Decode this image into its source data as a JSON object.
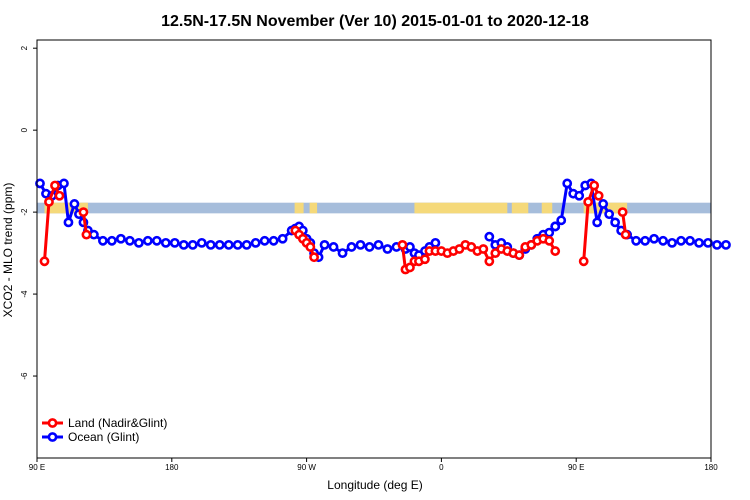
{
  "chart_data": {
    "type": "line",
    "title": "12.5N-17.5N November (Ver 10)   2015-01-01 to 2020-12-18",
    "xlabel": "Longitude (deg E)",
    "ylabel": "XCO2 - MLO trend (ppm)",
    "xlim": [
      90,
      450
    ],
    "ylim": [
      -8,
      2.2
    ],
    "x_ticks": [
      {
        "value": 90,
        "label": "90 E"
      },
      {
        "value": 180,
        "label": "180"
      },
      {
        "value": 270,
        "label": "90 W"
      },
      {
        "value": 360,
        "label": "0"
      },
      {
        "value": 450,
        "label": "90 E"
      },
      {
        "value": 540,
        "label": "180"
      }
    ],
    "y_ticks": [
      {
        "value": 2,
        "label": "2"
      },
      {
        "value": 0,
        "label": "0"
      },
      {
        "value": -2,
        "label": "-2"
      },
      {
        "value": -4,
        "label": "-4"
      },
      {
        "value": -6,
        "label": "-6"
      }
    ],
    "land_sea_strip": {
      "y_center": -1.9,
      "half_height": 0.13,
      "ocean_color": "#a6bddb",
      "land_color": "#f5d97a"
    },
    "legend": {
      "position": "bottom-left",
      "entries": [
        "Land (Nadir&Glint)",
        "Ocean (Glint)"
      ]
    },
    "series": [
      {
        "name": "Land (Nadir&Glint)",
        "color": "#ff0000",
        "segments": [
          {
            "x": [
              95,
              98,
              102,
              105
            ],
            "y": [
              -3.2,
              -1.75,
              -1.35,
              -1.6
            ]
          },
          {
            "x": [
              121,
              123
            ],
            "y": [
              -2.0,
              -2.55
            ]
          },
          {
            "x": [
              262.5,
              265,
              267.5,
              270,
              272.5,
              275
            ],
            "y": [
              -2.45,
              -2.55,
              -2.65,
              -2.75,
              -2.85,
              -3.1
            ]
          },
          {
            "x": [
              334,
              336,
              339,
              342,
              345,
              349,
              352,
              356,
              360,
              364,
              368,
              372,
              376,
              380,
              384,
              388,
              392,
              396,
              400,
              404,
              408,
              412,
              416,
              420,
              424,
              428,
              432,
              436
            ],
            "y": [
              -2.8,
              -3.4,
              -3.35,
              -3.2,
              -3.2,
              -3.15,
              -2.95,
              -2.95,
              -2.95,
              -3.0,
              -2.95,
              -2.9,
              -2.8,
              -2.85,
              -2.95,
              -2.9,
              -3.2,
              -3.0,
              -2.9,
              -2.95,
              -3.0,
              -3.05,
              -2.85,
              -2.8,
              -2.7,
              -2.65,
              -2.7,
              -2.95
            ]
          }
        ]
      },
      {
        "name": "Ocean (Glint)",
        "color": "#0000ff",
        "segments": [
          {
            "x": [
              92,
              96,
              100,
              104,
              108,
              111,
              115,
              118,
              121,
              124,
              128,
              134,
              140,
              146,
              152,
              158,
              164,
              170,
              176,
              182,
              188,
              194,
              200,
              206,
              212,
              218,
              224,
              230,
              236,
              242,
              248,
              254,
              260,
              262.5,
              265,
              267.5,
              270,
              272.5,
              275,
              278,
              282,
              288,
              294,
              300,
              306,
              312,
              318,
              324,
              330,
              336,
              339,
              342,
              345,
              349,
              352,
              356
            ],
            "y": [
              -1.3,
              -1.55,
              -1.6,
              -1.35,
              -1.3,
              -2.25,
              -1.8,
              -2.05,
              -2.25,
              -2.45,
              -2.55,
              -2.7,
              -2.7,
              -2.65,
              -2.7,
              -2.75,
              -2.7,
              -2.7,
              -2.75,
              -2.75,
              -2.8,
              -2.8,
              -2.75,
              -2.8,
              -2.8,
              -2.8,
              -2.8,
              -2.8,
              -2.75,
              -2.7,
              -2.7,
              -2.65,
              -2.45,
              -2.4,
              -2.35,
              -2.45,
              -2.65,
              -2.75,
              -3.0,
              -3.1,
              -2.8,
              -2.85,
              -3.0,
              -2.85,
              -2.8,
              -2.85,
              -2.8,
              -2.9,
              -2.85,
              -2.9,
              -2.85,
              -3.0,
              -3.05,
              -2.95,
              -2.85,
              -2.75
            ]
          },
          {
            "x": [
              392,
              396,
              400,
              404,
              408,
              412,
              416,
              420,
              424,
              428,
              432,
              436
            ],
            "y": [
              -2.6,
              -2.8,
              -2.75,
              -2.85,
              -3.0,
              -3.05,
              -2.9,
              -2.8,
              -2.65,
              -2.55,
              -2.5,
              -2.35
            ]
          },
          {
            "x": [
              436,
              440,
              444,
              448,
              452,
              456,
              460,
              464,
              468,
              472,
              476,
              480,
              484,
              490,
              496,
              502,
              508,
              514,
              520,
              526,
              532,
              538,
              544,
              550
            ],
            "y": [
              -2.35,
              -2.2,
              -1.3,
              -1.55,
              -1.6,
              -1.35,
              -1.3,
              -2.25,
              -1.8,
              -2.05,
              -2.25,
              -2.45,
              -2.55,
              -2.7,
              -2.7,
              -2.65,
              -2.7,
              -2.75,
              -2.7,
              -2.7,
              -2.75,
              -2.75,
              -2.8,
              -2.8
            ]
          }
        ]
      },
      {
        "name": "Land (Nadir&Glint)",
        "color": "#ff0000",
        "segments": [
          {
            "x": [
              455,
              458,
              462,
              465
            ],
            "y": [
              -3.2,
              -1.75,
              -1.35,
              -1.6
            ]
          },
          {
            "x": [
              481,
              483
            ],
            "y": [
              -2.0,
              -2.55
            ]
          }
        ]
      }
    ]
  }
}
